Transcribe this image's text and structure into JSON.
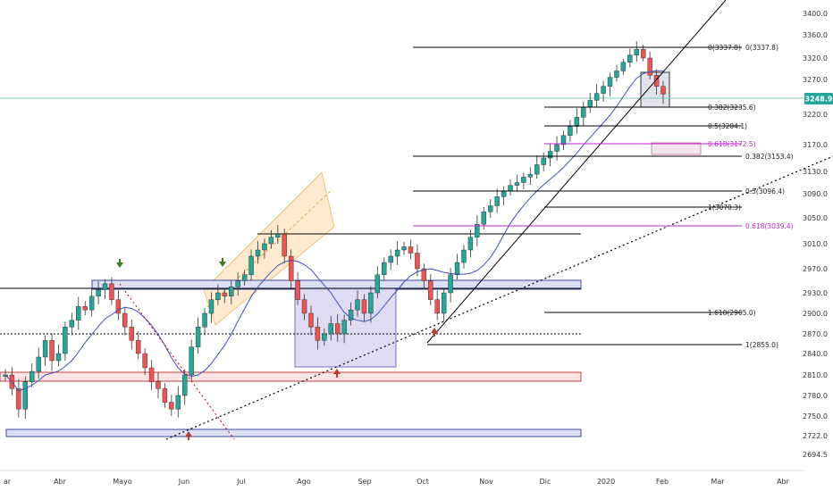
{
  "chart_data": {
    "type": "candlestick",
    "y_axis": {
      "ticks": [
        "3400.0",
        "3360.0",
        "3320.0",
        "3270.0",
        "3220.0",
        "3170.0",
        "3130.0",
        "3090.0",
        "3050.0",
        "3010.0",
        "2970.0",
        "2930.0",
        "2900.0",
        "2870.0",
        "2840.0",
        "2810.0",
        "2780.0",
        "2750.0",
        "2722.0",
        "2694.5"
      ],
      "ylim": [
        2680,
        3415
      ],
      "current_price": "3248.9"
    },
    "x_axis": {
      "ticks": [
        "ar",
        "Abr",
        "Mayo",
        "Jun",
        "Jul",
        "Ago",
        "Sep",
        "Oct",
        "Nov",
        "Dic",
        "2020",
        "Feb",
        "Mar",
        "Abr"
      ]
    },
    "fib_levels": [
      {
        "label": "0(3337.8)",
        "value": 3337.8,
        "color": "#000000"
      },
      {
        "label": "0(3337.8)",
        "value": 3337.8,
        "color": "#000000"
      },
      {
        "label": "0.382(3235.6)",
        "value": 3235.6,
        "color": "#000000"
      },
      {
        "label": "0.5(3204.1)",
        "value": 3204.1,
        "color": "#000000"
      },
      {
        "label": "0.618(3172.5)",
        "value": 3172.5,
        "color": "#c026d3"
      },
      {
        "label": "0.382(3153.4)",
        "value": 3153.4,
        "color": "#000000"
      },
      {
        "label": "0.5(3096.4)",
        "value": 3096.4,
        "color": "#000000"
      },
      {
        "label": "1(3070.3)",
        "value": 3070.3,
        "color": "#000000"
      },
      {
        "label": "0.618(3039.4)",
        "value": 3039.4,
        "color": "#c026d3"
      },
      {
        "label": "1.618(2905.0)",
        "value": 2905.0,
        "color": "#000000"
      },
      {
        "label": "1(2855.0)",
        "value": 2855.0,
        "color": "#000000"
      }
    ],
    "series": [
      {
        "name": "price",
        "style": "candles",
        "up_color": "#26a69a",
        "down_color": "#ef5350",
        "path_values": [
          2810,
          2790,
          2760,
          2800,
          2815,
          2835,
          2860,
          2830,
          2840,
          2880,
          2890,
          2910,
          2905,
          2925,
          2935,
          2945,
          2920,
          2900,
          2880,
          2860,
          2840,
          2820,
          2800,
          2790,
          2770,
          2760,
          2780,
          2810,
          2850,
          2880,
          2900,
          2920,
          2930,
          2925,
          2940,
          2950,
          2960,
          2990,
          3000,
          3010,
          3020,
          3025,
          2990,
          2950,
          2920,
          2900,
          2880,
          2860,
          2870,
          2885,
          2870,
          2890,
          2905,
          2920,
          2900,
          2930,
          2960,
          2980,
          2990,
          3000,
          3005,
          2995,
          2970,
          2950,
          2920,
          2900,
          2930,
          2960,
          2980,
          3000,
          3020,
          3040,
          3060,
          3070,
          3085,
          3095,
          3105,
          3110,
          3120,
          3125,
          3140,
          3150,
          3160,
          3170,
          3185,
          3200,
          3215,
          3230,
          3240,
          3250,
          3260,
          3275,
          3290,
          3310,
          3325,
          3335,
          3320,
          3280,
          3260,
          3248.9
        ]
      },
      {
        "name": "moving average",
        "style": "line",
        "color": "#3f51b5"
      }
    ]
  }
}
